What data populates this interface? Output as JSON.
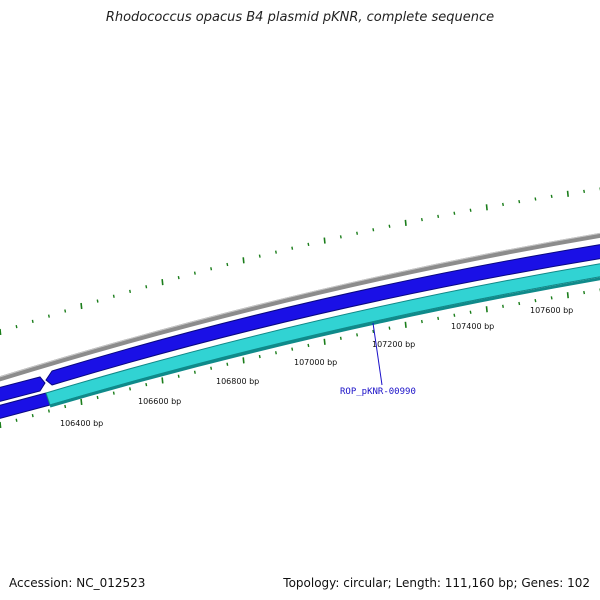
{
  "title": "Rhodococcus opacus B4 plasmid pKNR, complete sequence",
  "footer": {
    "accession": "Accession: NC_012523",
    "topology": "Topology: circular; Length: 111,160 bp; Genes: 102"
  },
  "tick_labels": [
    "106400 bp",
    "106600 bp",
    "106800 bp",
    "107000 bp",
    "107200 bp",
    "107400 bp",
    "107600 bp"
  ],
  "gene_callout": "ROP_pKNR-00990",
  "colors": {
    "backbone": "#8c8c8c",
    "forward_gene": "#1a10e6",
    "reverse_gene": "#31d3d3",
    "reverse_gene_edge": "#0f8a8a",
    "ticks": "#1a7d1a",
    "callout": "#1a10c8"
  }
}
